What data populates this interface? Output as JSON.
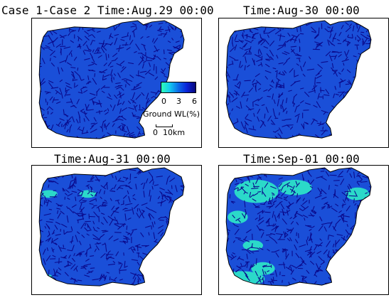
{
  "panels": [
    {
      "title": "Case 1-Case 2 Time:Aug.29 00:00",
      "light_patches": []
    },
    {
      "title": "Time:Aug-30 00:00",
      "light_patches": []
    },
    {
      "title": "Time:Aug-31 00:00",
      "light_patches": [
        [
          0.33,
          0.22,
          0.05,
          0.03
        ],
        [
          0.07,
          0.88,
          0.06,
          0.04
        ],
        [
          0.1,
          0.22,
          0.05,
          0.03
        ]
      ]
    },
    {
      "title": "Time:Sep-01 00:00",
      "light_patches": [
        [
          0.22,
          0.2,
          0.13,
          0.09
        ],
        [
          0.45,
          0.17,
          0.1,
          0.06
        ],
        [
          0.11,
          0.4,
          0.06,
          0.05
        ],
        [
          0.82,
          0.22,
          0.07,
          0.05
        ],
        [
          0.13,
          0.88,
          0.14,
          0.06
        ],
        [
          0.26,
          0.8,
          0.07,
          0.05
        ],
        [
          0.2,
          0.62,
          0.06,
          0.04
        ]
      ]
    }
  ],
  "legend": {
    "label": "Ground WL(%)",
    "ticks": [
      "0",
      "3",
      "6"
    ],
    "colors": [
      "#2dffb8",
      "#12c8f0",
      "#0b6ae8",
      "#0a22d8",
      "#08087a"
    ]
  },
  "scale_bar": {
    "zero": "0",
    "label": "10km"
  },
  "colors": {
    "base_fill": "#1a4fd8",
    "channel": "#0a0a8c",
    "light": "#2ee8c8",
    "outline": "#000000"
  }
}
